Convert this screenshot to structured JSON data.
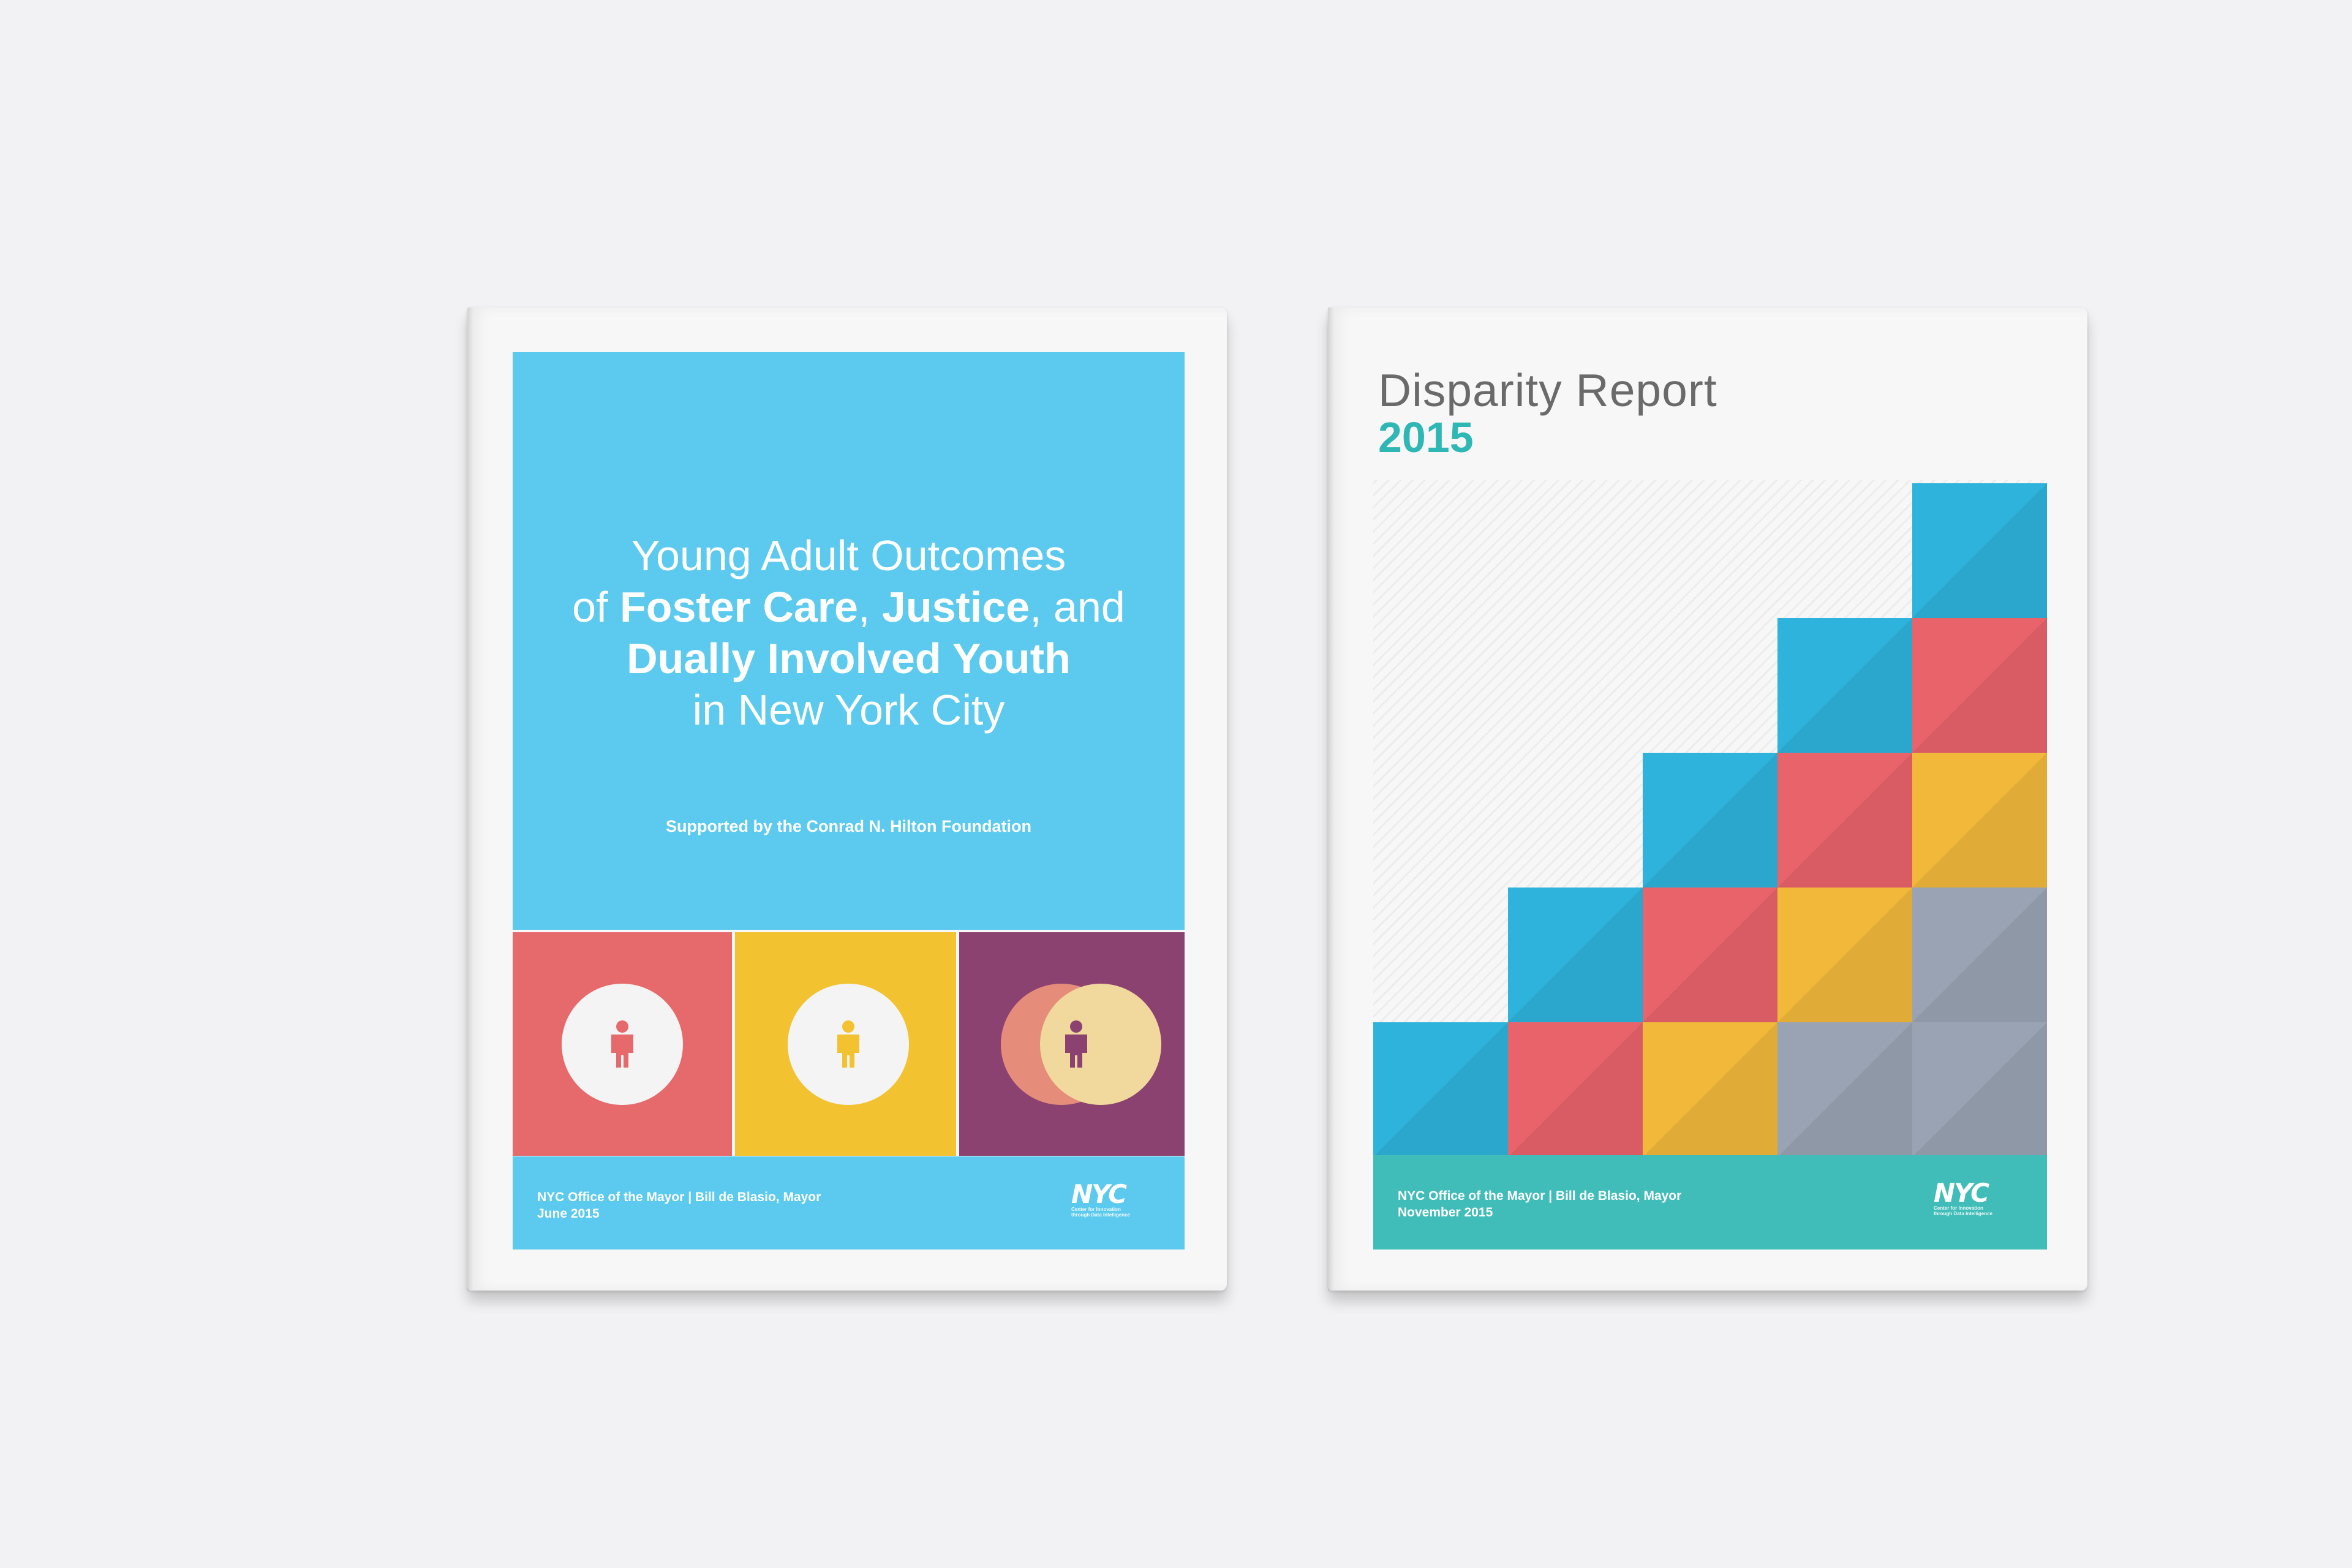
{
  "left_cover": {
    "title": {
      "line1": "Young Adult Outcomes",
      "line2_pre": "of ",
      "line2_b1": "Foster Care",
      "line2_mid": ", ",
      "line2_b2": "Justice",
      "line2_post": ", and",
      "line3": "Dually Involved Youth",
      "line4": "in New York City"
    },
    "supported": "Supported by the Conrad N. Hilton Foundation",
    "footer_line1": "NYC Office of the Mayor | Bill de Blasio, Mayor",
    "footer_line2": "June 2015",
    "logo": "NYC",
    "logo_sub1": "Center for Innovation",
    "logo_sub2": "through Data Intelligence",
    "colors": {
      "panel": "#5ccaee",
      "tile1": "#e66a6c",
      "tile2": "#f2c230",
      "tile3": "#8b4270"
    }
  },
  "right_cover": {
    "title": "Disparity Report",
    "year": "2015",
    "footer_line1": "NYC Office of the Mayor | Bill de Blasio, Mayor",
    "footer_line2": "November 2015",
    "logo": "NYC",
    "logo_sub1": "Center for Innovation",
    "logo_sub2": "through Data Intelligence",
    "colors": {
      "blue": "#2eb3dc",
      "red": "#e9636b",
      "yellow": "#f1b83a",
      "gray": "#9aa3b3",
      "footer": "#41bdb9"
    },
    "staircase": [
      [
        "blue"
      ],
      [
        "blue",
        "red"
      ],
      [
        "blue",
        "red",
        "yellow"
      ],
      [
        "blue",
        "red",
        "yellow",
        "gray"
      ],
      [
        "blue",
        "red",
        "yellow",
        "gray",
        "gray"
      ]
    ]
  }
}
